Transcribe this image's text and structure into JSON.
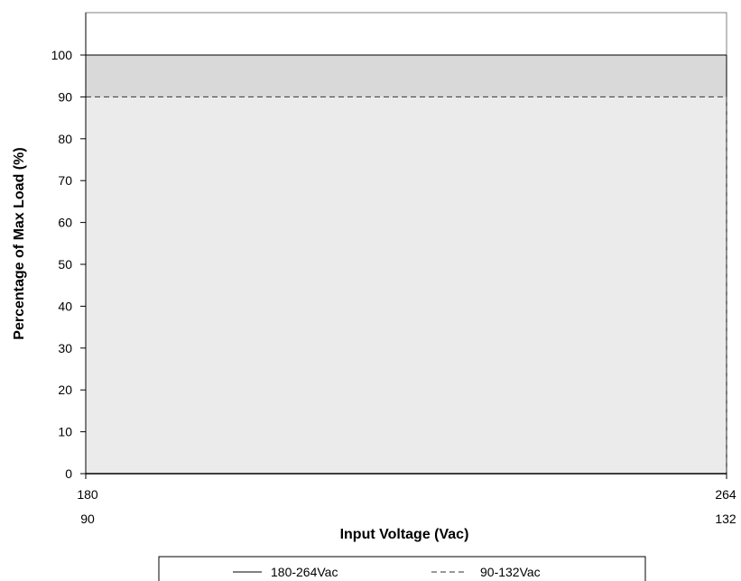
{
  "chart_data": {
    "type": "area",
    "title": "",
    "xlabel": "Input Voltage (Vac)",
    "ylabel": "Percentage of Max Load (%)",
    "ylim": [
      0,
      110
    ],
    "yticks": [
      0,
      10,
      20,
      30,
      40,
      50,
      60,
      70,
      80,
      90,
      100
    ],
    "x_tick_rows": [
      [
        "180",
        "264"
      ],
      [
        "90",
        "132"
      ]
    ],
    "series": [
      {
        "name": "180-264Vac",
        "line_style": "solid",
        "x": [
          "180",
          "264"
        ],
        "values": [
          100,
          100
        ]
      },
      {
        "name": "90-132Vac",
        "line_style": "dashed",
        "x": [
          "90",
          "132"
        ],
        "values": [
          90,
          90
        ]
      }
    ],
    "legend_position": "bottom",
    "grid": false
  },
  "colors": {
    "fill_upper": "#d9d9d9",
    "fill_lower": "#ebebeb",
    "line": "#000000",
    "dashed": "#333333",
    "frame": "#808080"
  }
}
